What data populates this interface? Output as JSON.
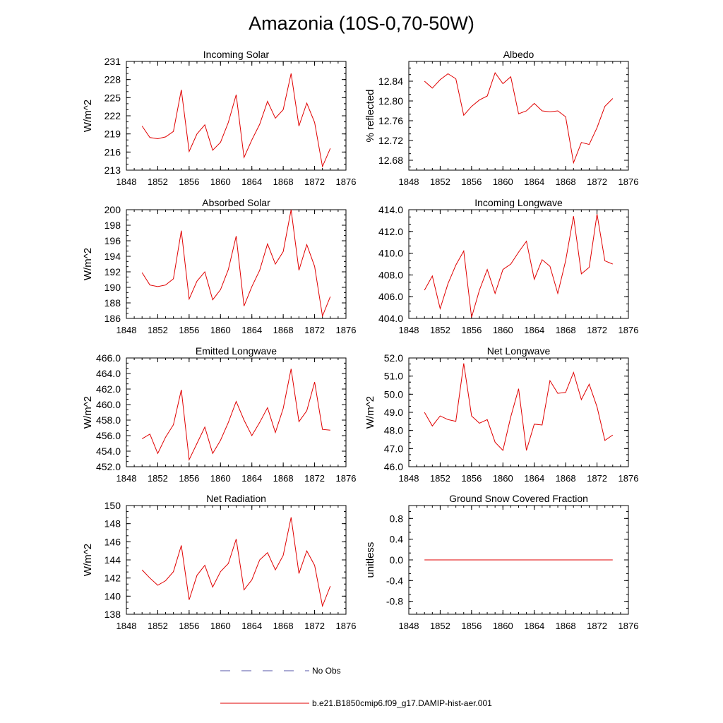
{
  "figure": {
    "title": "Amazonia (10S-0,70-50W)",
    "legend": [
      {
        "label": "No Obs",
        "color": "#5555aa",
        "style": "dashed"
      },
      {
        "label": "b.e21.B1850cmip6.f09_g17.DAMIP-hist-aer.001",
        "color": "#e00000",
        "style": "solid"
      }
    ]
  },
  "colors": {
    "series": "#e00000",
    "frame": "#000000"
  },
  "chart_data": [
    {
      "type": "line",
      "title": "Incoming Solar",
      "xlabel": "",
      "ylabel": "W/m^2",
      "xlim": [
        1848,
        1876
      ],
      "ylim": [
        213,
        231
      ],
      "xticks": [
        "1848",
        "1852",
        "1856",
        "1860",
        "1864",
        "1868",
        "1872",
        "1876"
      ],
      "yticks": [
        "213",
        "216",
        "219",
        "222",
        "225",
        "228",
        "231"
      ],
      "x": [
        1850,
        1851,
        1852,
        1853,
        1854,
        1855,
        1856,
        1857,
        1858,
        1859,
        1860,
        1861,
        1862,
        1863,
        1864,
        1865,
        1866,
        1867,
        1868,
        1869,
        1870,
        1871,
        1872,
        1873,
        1874
      ],
      "series": [
        {
          "values": [
            220.3,
            218.4,
            218.2,
            218.5,
            219.4,
            226.3,
            216.1,
            219.0,
            220.5,
            216.3,
            217.6,
            220.9,
            225.5,
            215.1,
            218.0,
            220.6,
            224.4,
            221.6,
            223.0,
            229.0,
            220.3,
            224.1,
            220.9,
            213.6,
            216.6
          ]
        }
      ]
    },
    {
      "type": "line",
      "title": "Albedo",
      "xlabel": "",
      "ylabel": "% reflected",
      "xlim": [
        1848,
        1876
      ],
      "ylim": [
        12.66,
        12.88
      ],
      "xticks": [
        "1848",
        "1852",
        "1856",
        "1860",
        "1864",
        "1868",
        "1872",
        "1876"
      ],
      "yticks": [
        "12.68",
        "12.72",
        "12.76",
        "12.80",
        "12.84"
      ],
      "x": [
        1850,
        1851,
        1852,
        1853,
        1854,
        1855,
        1856,
        1857,
        1858,
        1859,
        1860,
        1861,
        1862,
        1863,
        1864,
        1865,
        1866,
        1867,
        1868,
        1869,
        1870,
        1871,
        1872,
        1873,
        1874
      ],
      "series": [
        {
          "values": [
            12.84,
            12.826,
            12.843,
            12.855,
            12.845,
            12.771,
            12.789,
            12.802,
            12.81,
            12.857,
            12.835,
            12.849,
            12.774,
            12.78,
            12.795,
            12.78,
            12.778,
            12.78,
            12.768,
            12.675,
            12.716,
            12.712,
            12.746,
            12.789,
            12.805
          ]
        }
      ]
    },
    {
      "type": "line",
      "title": "Absorbed Solar",
      "xlabel": "",
      "ylabel": "W/m^2",
      "xlim": [
        1848,
        1876
      ],
      "ylim": [
        186,
        200
      ],
      "xticks": [
        "1848",
        "1852",
        "1856",
        "1860",
        "1864",
        "1868",
        "1872",
        "1876"
      ],
      "yticks": [
        "186",
        "188",
        "190",
        "192",
        "194",
        "196",
        "198",
        "200"
      ],
      "x": [
        1850,
        1851,
        1852,
        1853,
        1854,
        1855,
        1856,
        1857,
        1858,
        1859,
        1860,
        1861,
        1862,
        1863,
        1864,
        1865,
        1866,
        1867,
        1868,
        1869,
        1870,
        1871,
        1872,
        1873,
        1874
      ],
      "series": [
        {
          "values": [
            191.9,
            190.3,
            190.1,
            190.3,
            191.1,
            197.3,
            188.5,
            190.8,
            192.0,
            188.4,
            189.7,
            192.3,
            196.6,
            187.6,
            190.1,
            192.2,
            195.6,
            193.0,
            194.6,
            200.0,
            192.2,
            195.5,
            192.7,
            186.3,
            188.8
          ]
        }
      ]
    },
    {
      "type": "line",
      "title": "Incoming Longwave",
      "xlabel": "",
      "ylabel": "",
      "xlim": [
        1848,
        1876
      ],
      "ylim": [
        404,
        414
      ],
      "xticks": [
        "1848",
        "1852",
        "1856",
        "1860",
        "1864",
        "1868",
        "1872",
        "1876"
      ],
      "yticks": [
        "404.0",
        "406.0",
        "408.0",
        "410.0",
        "412.0",
        "414.0"
      ],
      "x": [
        1850,
        1851,
        1852,
        1853,
        1854,
        1855,
        1856,
        1857,
        1858,
        1859,
        1860,
        1861,
        1862,
        1863,
        1864,
        1865,
        1866,
        1867,
        1868,
        1869,
        1870,
        1871,
        1872,
        1873,
        1874
      ],
      "series": [
        {
          "values": [
            406.6,
            407.9,
            404.9,
            407.2,
            408.9,
            410.2,
            404.1,
            406.6,
            408.5,
            406.3,
            408.5,
            409.0,
            410.1,
            411.1,
            407.6,
            409.4,
            408.8,
            406.3,
            409.3,
            413.4,
            408.1,
            408.7,
            413.6,
            409.3,
            409.0
          ]
        }
      ]
    },
    {
      "type": "line",
      "title": "Emitted Longwave",
      "xlabel": "",
      "ylabel": "W/m^2",
      "xlim": [
        1848,
        1876
      ],
      "ylim": [
        452,
        466
      ],
      "xticks": [
        "1848",
        "1852",
        "1856",
        "1860",
        "1864",
        "1868",
        "1872",
        "1876"
      ],
      "yticks": [
        "452.0",
        "454.0",
        "456.0",
        "458.0",
        "460.0",
        "462.0",
        "464.0",
        "466.0"
      ],
      "x": [
        1850,
        1851,
        1852,
        1853,
        1854,
        1855,
        1856,
        1857,
        1858,
        1859,
        1860,
        1861,
        1862,
        1863,
        1864,
        1865,
        1866,
        1867,
        1868,
        1869,
        1870,
        1871,
        1872,
        1873,
        1874
      ],
      "series": [
        {
          "values": [
            455.6,
            456.2,
            453.7,
            455.8,
            457.4,
            461.9,
            452.9,
            455.0,
            457.1,
            453.7,
            455.4,
            457.7,
            460.4,
            458.0,
            456.0,
            457.7,
            459.6,
            456.4,
            459.5,
            464.6,
            457.8,
            459.2,
            462.9,
            456.8,
            456.7
          ]
        }
      ]
    },
    {
      "type": "line",
      "title": "Net Longwave",
      "xlabel": "",
      "ylabel": "W/m^2",
      "xlim": [
        1848,
        1876
      ],
      "ylim": [
        46,
        52
      ],
      "xticks": [
        "1848",
        "1852",
        "1856",
        "1860",
        "1864",
        "1868",
        "1872",
        "1876"
      ],
      "yticks": [
        "46.0",
        "47.0",
        "48.0",
        "49.0",
        "50.0",
        "51.0",
        "52.0"
      ],
      "x": [
        1850,
        1851,
        1852,
        1853,
        1854,
        1855,
        1856,
        1857,
        1858,
        1859,
        1860,
        1861,
        1862,
        1863,
        1864,
        1865,
        1866,
        1867,
        1868,
        1869,
        1870,
        1871,
        1872,
        1873,
        1874
      ],
      "series": [
        {
          "values": [
            49.0,
            48.25,
            48.8,
            48.6,
            48.5,
            51.7,
            48.8,
            48.4,
            48.6,
            47.35,
            46.9,
            48.75,
            50.3,
            46.9,
            48.35,
            48.3,
            50.75,
            50.05,
            50.1,
            51.2,
            49.7,
            50.55,
            49.3,
            47.45,
            47.75
          ]
        }
      ]
    },
    {
      "type": "line",
      "title": "Net Radiation",
      "xlabel": "",
      "ylabel": "W/m^2",
      "xlim": [
        1848,
        1876
      ],
      "ylim": [
        138,
        150
      ],
      "xticks": [
        "1848",
        "1852",
        "1856",
        "1860",
        "1864",
        "1868",
        "1872",
        "1876"
      ],
      "yticks": [
        "138",
        "140",
        "142",
        "144",
        "146",
        "148",
        "150"
      ],
      "x": [
        1850,
        1851,
        1852,
        1853,
        1854,
        1855,
        1856,
        1857,
        1858,
        1859,
        1860,
        1861,
        1862,
        1863,
        1864,
        1865,
        1866,
        1867,
        1868,
        1869,
        1870,
        1871,
        1872,
        1873,
        1874
      ],
      "series": [
        {
          "values": [
            142.9,
            142.0,
            141.2,
            141.7,
            142.7,
            145.6,
            139.6,
            142.3,
            143.4,
            141.0,
            142.7,
            143.6,
            146.3,
            140.7,
            141.8,
            144.0,
            144.8,
            142.9,
            144.5,
            148.7,
            142.5,
            145.0,
            143.4,
            138.9,
            141.1
          ]
        }
      ]
    },
    {
      "type": "line",
      "title": "Ground Snow Covered Fraction",
      "xlabel": "",
      "ylabel": "unitless",
      "xlim": [
        1848,
        1876
      ],
      "ylim": [
        -1.05,
        1.05
      ],
      "xticks": [
        "1848",
        "1852",
        "1856",
        "1860",
        "1864",
        "1868",
        "1872",
        "1876"
      ],
      "yticks": [
        "-0.8",
        "-0.4",
        "0.0",
        "0.4",
        "0.8"
      ],
      "x": [
        1850,
        1851,
        1852,
        1853,
        1854,
        1855,
        1856,
        1857,
        1858,
        1859,
        1860,
        1861,
        1862,
        1863,
        1864,
        1865,
        1866,
        1867,
        1868,
        1869,
        1870,
        1871,
        1872,
        1873,
        1874
      ],
      "series": [
        {
          "values": [
            0,
            0,
            0,
            0,
            0,
            0,
            0,
            0,
            0,
            0,
            0,
            0,
            0,
            0,
            0,
            0,
            0,
            0,
            0,
            0,
            0,
            0,
            0,
            0,
            0
          ]
        }
      ]
    }
  ]
}
